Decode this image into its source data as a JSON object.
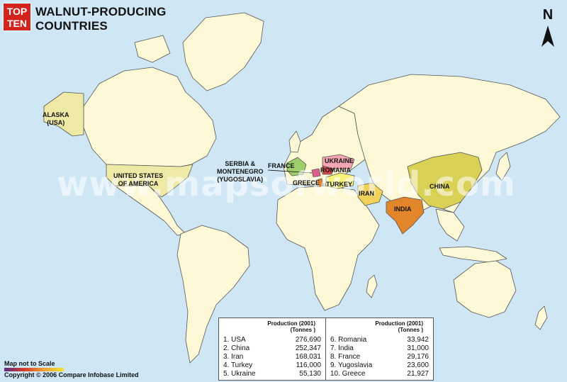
{
  "header": {
    "badge_line1": "TOP",
    "badge_line2": "TEN",
    "title_line1": "WALNUT-PRODUCING",
    "title_line2": "COUNTRIES"
  },
  "compass": {
    "letter": "N"
  },
  "watermark": "www.mapsofworld.com",
  "map_labels": {
    "alaska": "ALASKA\n(USA)",
    "usa": "UNITED STATES\nOF AMERICA",
    "serbia": "SERBIA &\nMONTENEGRO\n(YUGOSLAVIA)",
    "france": "FRANCE",
    "ukraine": "UKRAINE",
    "romania": "ROMANIA",
    "greece": "GREECE",
    "turkey": "TURKEY",
    "iran": "IRAN",
    "india": "INDIA",
    "china": "CHINA"
  },
  "colors": {
    "ocean": "#cfe6f5",
    "land": "#fdf8d6",
    "usa": "#efe9a6",
    "china": "#d9d155",
    "india": "#e3852a",
    "iran": "#f1d15a",
    "turkey": "#f7f27a",
    "ukraine": "#f4a7b3",
    "romania": "#d64a4a",
    "france": "#9fcf6a",
    "greece": "#e3852a",
    "yugoslavia": "#e05c8a"
  },
  "table": {
    "header_line1": "Production (2001)",
    "header_line2": "(Tonnes )",
    "left": [
      {
        "name": "1. USA",
        "value": "276,690"
      },
      {
        "name": "2. China",
        "value": "252,347"
      },
      {
        "name": "3. Iran",
        "value": "168,031"
      },
      {
        "name": "4. Turkey",
        "value": "116,000"
      },
      {
        "name": "5. Ukraine",
        "value": "55,130"
      }
    ],
    "right": [
      {
        "name": "6. Romania",
        "value": "33,942"
      },
      {
        "name": "7. India",
        "value": "31,000"
      },
      {
        "name": "8. France",
        "value": "29,176"
      },
      {
        "name": "9. Yugoslavia",
        "value": "23,600"
      },
      {
        "name": "10. Greece",
        "value": "21,927"
      }
    ]
  },
  "footer": {
    "scale_note": "Map not to Scale",
    "copyright": "Copyright © 2006 Compare Infobase Limited"
  }
}
